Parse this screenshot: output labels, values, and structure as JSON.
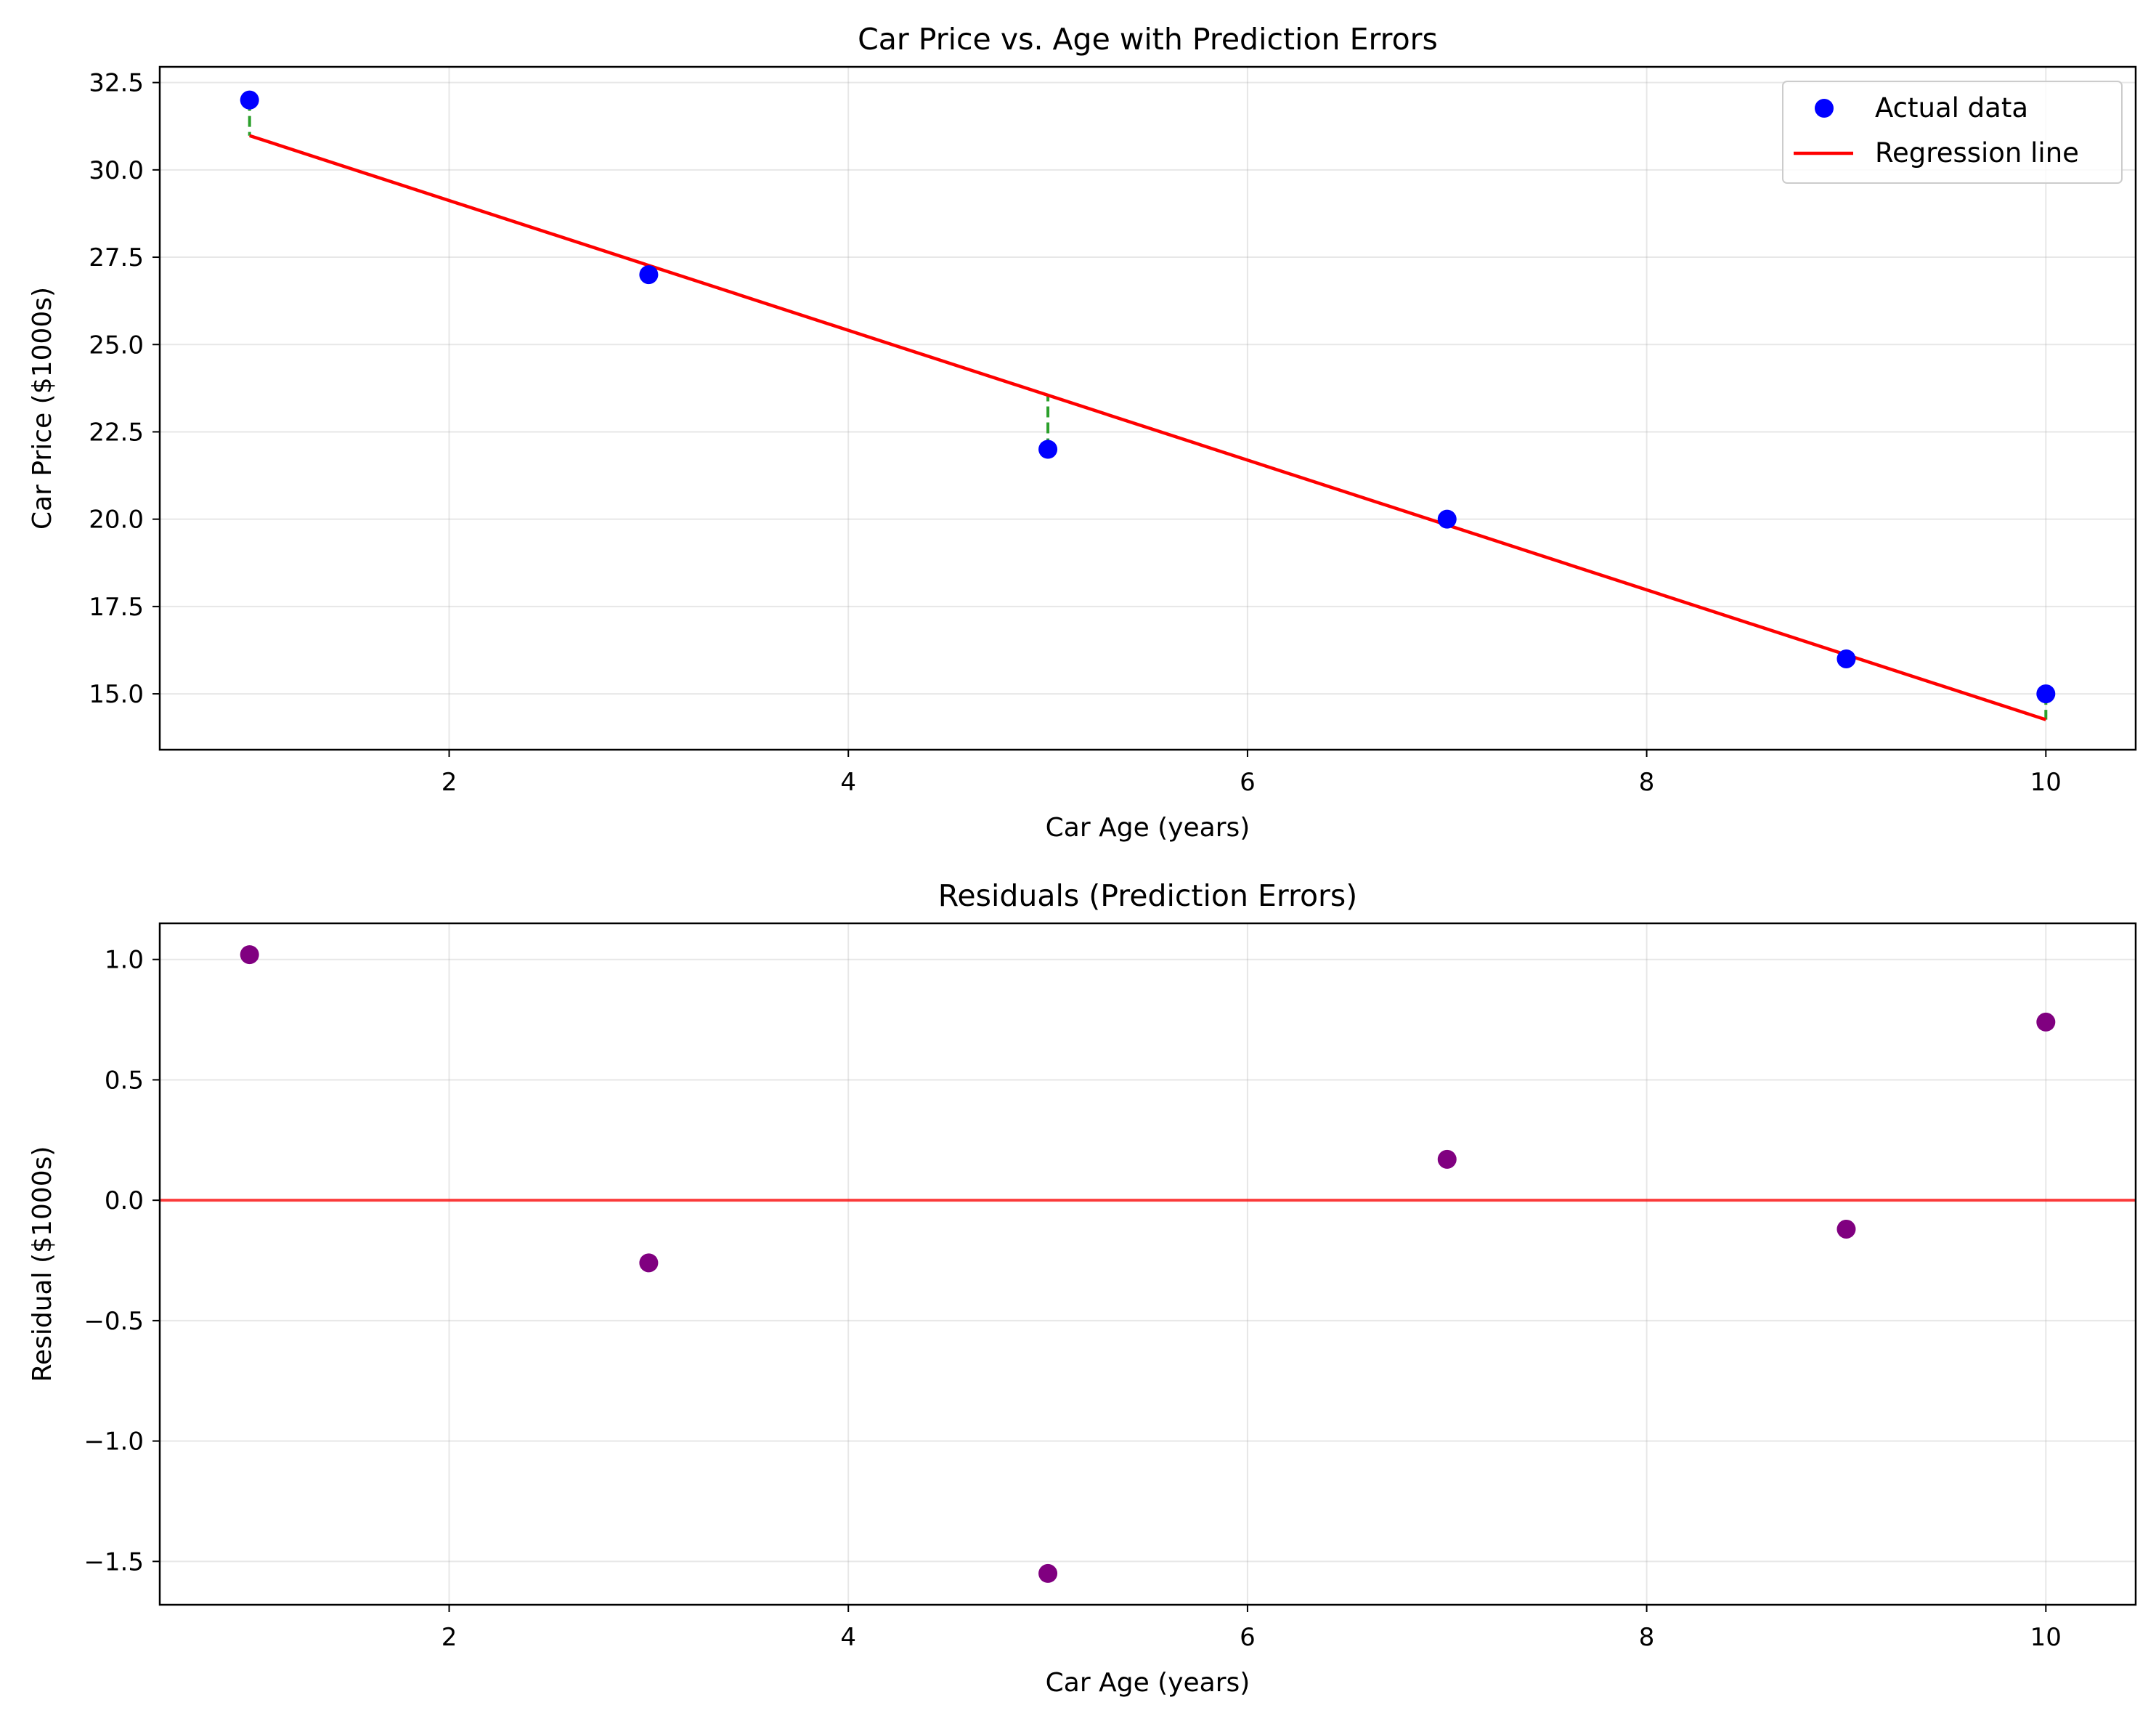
{
  "chart_data": [
    {
      "type": "scatter",
      "title": "Car Price vs. Age with Prediction Errors",
      "xlabel": "Car Age (years)",
      "ylabel": "Car Price ($1000s)",
      "xlim": [
        0.55,
        10.45
      ],
      "ylim": [
        13.4,
        32.95
      ],
      "xticks": [
        2,
        4,
        6,
        8,
        10
      ],
      "xtick_labels": [
        "2",
        "4",
        "6",
        "8",
        "10"
      ],
      "yticks": [
        15.0,
        17.5,
        20.0,
        22.5,
        25.0,
        27.5,
        30.0,
        32.5
      ],
      "ytick_labels": [
        "15.0",
        "17.5",
        "20.0",
        "22.5",
        "25.0",
        "27.5",
        "30.0",
        "32.5"
      ],
      "grid": true,
      "legend": {
        "position": "top-right",
        "entries": [
          "Actual data",
          "Regression line"
        ]
      },
      "series": [
        {
          "name": "Actual data",
          "kind": "scatter",
          "color": "#0000ff",
          "x": [
            1,
            3,
            5,
            7,
            9,
            10
          ],
          "y": [
            32,
            27,
            22,
            20,
            16,
            15
          ]
        },
        {
          "name": "Regression line",
          "kind": "line",
          "color": "#ff0000",
          "x": [
            1,
            10
          ],
          "y": [
            30.98,
            14.26
          ]
        }
      ],
      "error_lines": {
        "color": "#2ca02c",
        "style": "dashed",
        "x": [
          1,
          3,
          5,
          7,
          9,
          10
        ],
        "y_actual": [
          32,
          27,
          22,
          20,
          16,
          15
        ],
        "y_predicted": [
          30.98,
          27.26,
          23.55,
          19.83,
          16.12,
          14.26
        ]
      }
    },
    {
      "type": "scatter",
      "title": "Residuals (Prediction Errors)",
      "xlabel": "Car Age (years)",
      "ylabel": "Residual ($1000s)",
      "xlim": [
        0.55,
        10.45
      ],
      "ylim": [
        -1.68,
        1.15
      ],
      "xticks": [
        2,
        4,
        6,
        8,
        10
      ],
      "xtick_labels": [
        "2",
        "4",
        "6",
        "8",
        "10"
      ],
      "yticks": [
        -1.5,
        -1.0,
        -0.5,
        0.0,
        0.5,
        1.0
      ],
      "ytick_labels": [
        "−1.5",
        "−1.0",
        "−0.5",
        "0.0",
        "0.5",
        "1.0"
      ],
      "grid": true,
      "series": [
        {
          "kind": "scatter",
          "color": "#800080",
          "x": [
            1,
            3,
            5,
            7,
            9,
            10
          ],
          "y": [
            1.02,
            -0.26,
            -1.55,
            0.17,
            -0.12,
            0.74
          ]
        }
      ],
      "reference_line": {
        "y": 0,
        "color": "#ff0000"
      }
    }
  ]
}
